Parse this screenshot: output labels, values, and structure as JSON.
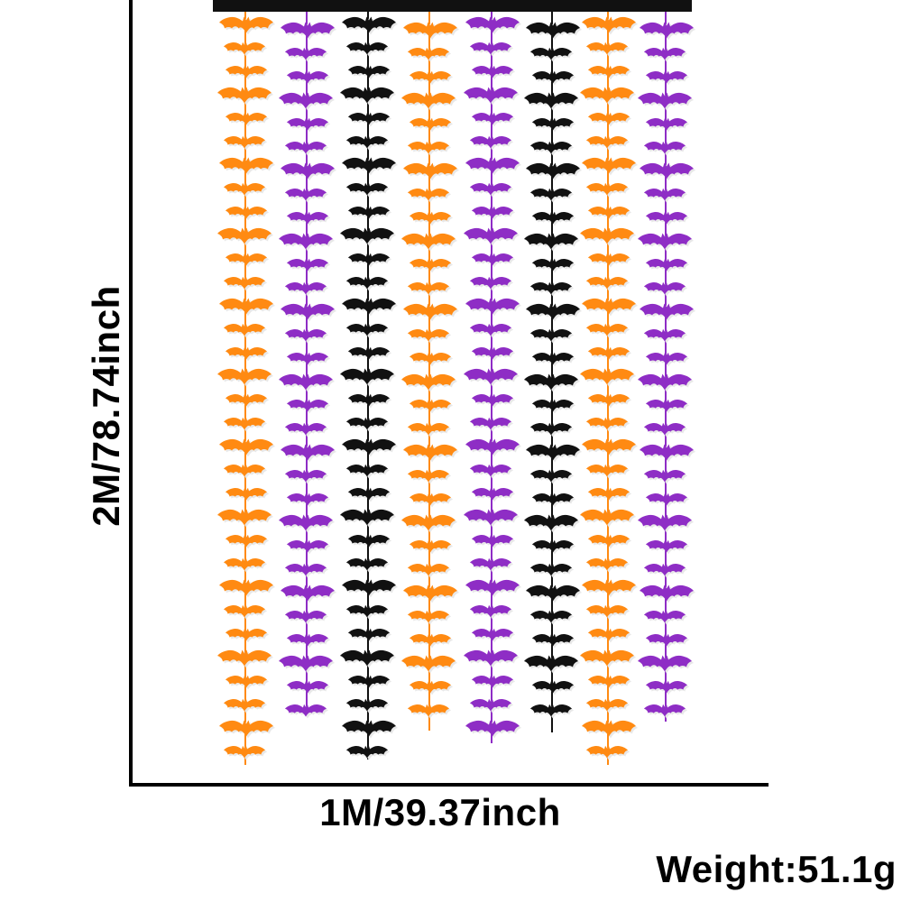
{
  "dimensions": {
    "height_label": "2M/78.74inch",
    "width_label": "1M/39.37inch",
    "weight_label": "Weight:51.1g"
  },
  "product": {
    "strand_colors": [
      "#ff8a12",
      "#8e2dc5",
      "#111111",
      "#ff8a12",
      "#8e2dc5",
      "#111111",
      "#ff8a12",
      "#8e2dc5"
    ],
    "icon_name": "bat-icon",
    "header_bar_color": "#111111"
  }
}
